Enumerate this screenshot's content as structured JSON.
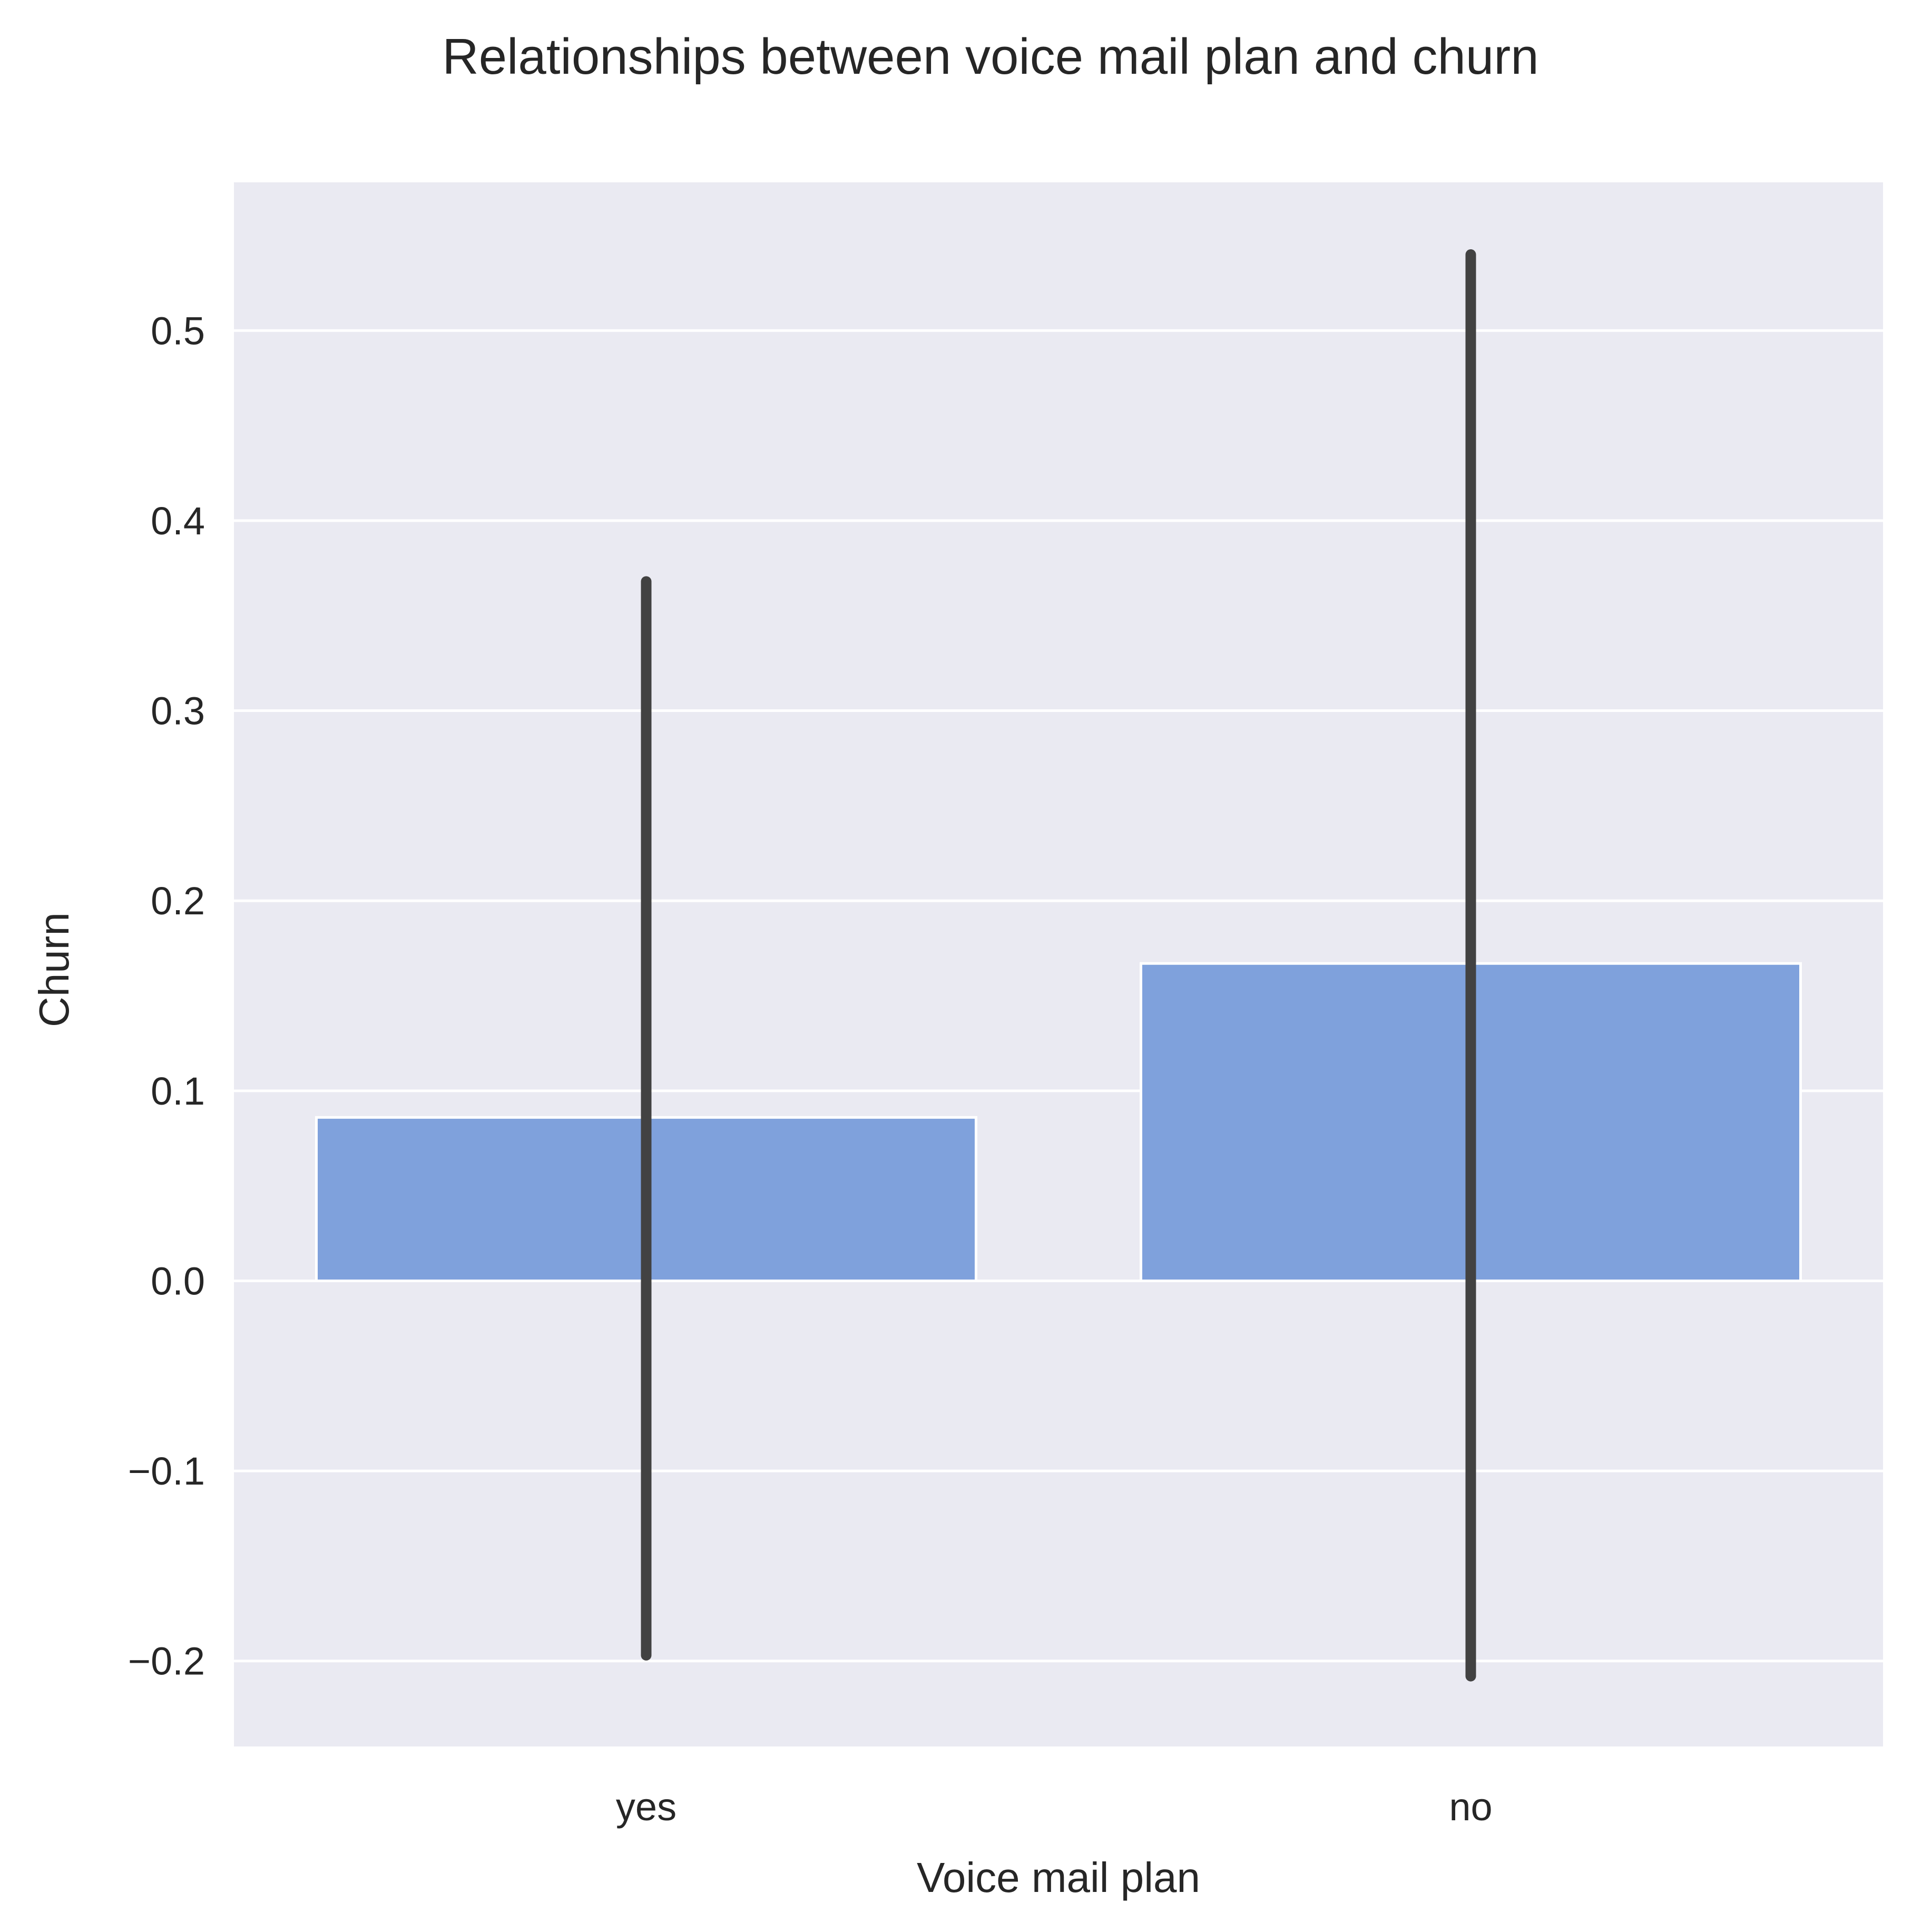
{
  "chart_data": {
    "type": "bar",
    "title": "Relationships between voice mail plan and churn",
    "xlabel": "Voice mail plan",
    "ylabel": "Churn",
    "categories": [
      "yes",
      "no"
    ],
    "values": [
      0.086,
      0.167
    ],
    "error_bars": [
      {
        "low": -0.197,
        "high": 0.368
      },
      {
        "low": -0.208,
        "high": 0.54
      }
    ],
    "ylim": [
      -0.245,
      0.578
    ],
    "yticks": [
      -0.2,
      -0.1,
      0.0,
      0.1,
      0.2,
      0.3,
      0.4,
      0.5
    ],
    "ytick_labels": [
      "−0.2",
      "−0.1",
      "0.0",
      "0.1",
      "0.2",
      "0.3",
      "0.4",
      "0.5"
    ],
    "grid": true,
    "colors": {
      "bar": "#7fa1dc",
      "error_bar": "#424242",
      "plot_background": "#eaeaf2",
      "grid": "#ffffff",
      "text": "#262626"
    }
  }
}
